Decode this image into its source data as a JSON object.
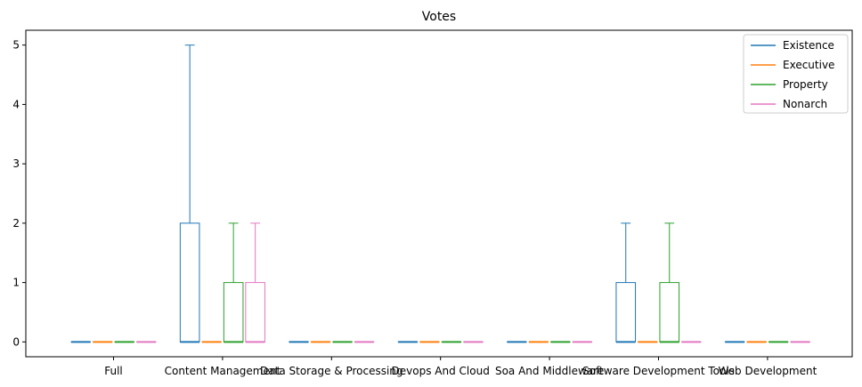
{
  "chart_data": {
    "type": "box",
    "title": "Votes",
    "xlabel": "",
    "ylabel": "",
    "ylim": [
      -0.25,
      5.25
    ],
    "yticks": [
      0,
      1,
      2,
      3,
      4,
      5
    ],
    "grid": false,
    "legend_position": "top-right",
    "categories": [
      "Full",
      "Content Management",
      "Data Storage & Processing",
      "Devops And Cloud",
      "Soa And Middleware",
      "Software Development Tools",
      "Web Development"
    ],
    "series": [
      {
        "name": "Existence",
        "color": "#1f77b4",
        "boxes": [
          {
            "min": 0,
            "q1": 0,
            "median": 0,
            "q3": 0,
            "max": 0
          },
          {
            "min": 0,
            "q1": 0,
            "median": 0,
            "q3": 2,
            "max": 5
          },
          {
            "min": 0,
            "q1": 0,
            "median": 0,
            "q3": 0,
            "max": 0
          },
          {
            "min": 0,
            "q1": 0,
            "median": 0,
            "q3": 0,
            "max": 0
          },
          {
            "min": 0,
            "q1": 0,
            "median": 0,
            "q3": 0,
            "max": 0
          },
          {
            "min": 0,
            "q1": 0,
            "median": 0,
            "q3": 1,
            "max": 2
          },
          {
            "min": 0,
            "q1": 0,
            "median": 0,
            "q3": 0,
            "max": 0
          }
        ]
      },
      {
        "name": "Executive",
        "color": "#ff7f0e",
        "boxes": [
          {
            "min": 0,
            "q1": 0,
            "median": 0,
            "q3": 0,
            "max": 0
          },
          {
            "min": 0,
            "q1": 0,
            "median": 0,
            "q3": 0,
            "max": 0
          },
          {
            "min": 0,
            "q1": 0,
            "median": 0,
            "q3": 0,
            "max": 0
          },
          {
            "min": 0,
            "q1": 0,
            "median": 0,
            "q3": 0,
            "max": 0
          },
          {
            "min": 0,
            "q1": 0,
            "median": 0,
            "q3": 0,
            "max": 0
          },
          {
            "min": 0,
            "q1": 0,
            "median": 0,
            "q3": 0,
            "max": 0
          },
          {
            "min": 0,
            "q1": 0,
            "median": 0,
            "q3": 0,
            "max": 0
          }
        ]
      },
      {
        "name": "Property",
        "color": "#2ca02c",
        "boxes": [
          {
            "min": 0,
            "q1": 0,
            "median": 0,
            "q3": 0,
            "max": 0
          },
          {
            "min": 0,
            "q1": 0,
            "median": 0,
            "q3": 1,
            "max": 2
          },
          {
            "min": 0,
            "q1": 0,
            "median": 0,
            "q3": 0,
            "max": 0
          },
          {
            "min": 0,
            "q1": 0,
            "median": 0,
            "q3": 0,
            "max": 0
          },
          {
            "min": 0,
            "q1": 0,
            "median": 0,
            "q3": 0,
            "max": 0
          },
          {
            "min": 0,
            "q1": 0,
            "median": 0,
            "q3": 1,
            "max": 2
          },
          {
            "min": 0,
            "q1": 0,
            "median": 0,
            "q3": 0,
            "max": 0
          }
        ]
      },
      {
        "name": "Nonarch",
        "color": "#e377c2",
        "boxes": [
          {
            "min": 0,
            "q1": 0,
            "median": 0,
            "q3": 0,
            "max": 0
          },
          {
            "min": 0,
            "q1": 0,
            "median": 0,
            "q3": 1,
            "max": 2
          },
          {
            "min": 0,
            "q1": 0,
            "median": 0,
            "q3": 0,
            "max": 0
          },
          {
            "min": 0,
            "q1": 0,
            "median": 0,
            "q3": 0,
            "max": 0
          },
          {
            "min": 0,
            "q1": 0,
            "median": 0,
            "q3": 0,
            "max": 0
          },
          {
            "min": 0,
            "q1": 0,
            "median": 0,
            "q3": 0,
            "max": 0
          },
          {
            "min": 0,
            "q1": 0,
            "median": 0,
            "q3": 0,
            "max": 0
          }
        ]
      }
    ]
  }
}
